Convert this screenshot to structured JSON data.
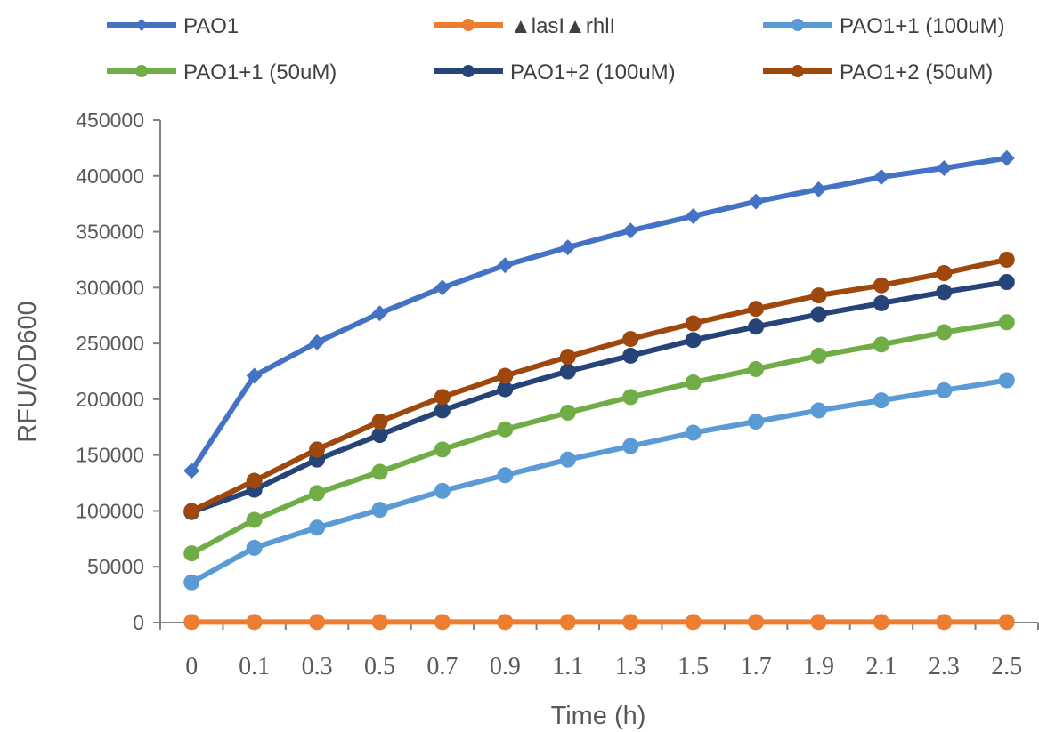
{
  "chart_data": {
    "type": "line",
    "title": "",
    "xlabel": "Time (h)",
    "ylabel": "RFU/OD600",
    "ylim": [
      0,
      450000
    ],
    "yticks": [
      "0",
      "50000",
      "100000",
      "150000",
      "200000",
      "250000",
      "300000",
      "350000",
      "400000",
      "450000"
    ],
    "categories": [
      "0",
      "0.1",
      "0.3",
      "0.5",
      "0.7",
      "0.9",
      "1.1",
      "1.3",
      "1.5",
      "1.7",
      "1.9",
      "2.1",
      "2.3",
      "2.5"
    ],
    "grid": false,
    "legend_position": "top",
    "series": [
      {
        "name": "PAO1",
        "color": "#4472C4",
        "marker": "diamond",
        "values": [
          136000,
          221000,
          251000,
          277000,
          300000,
          320000,
          336000,
          351000,
          364000,
          377000,
          388000,
          399000,
          407000,
          416000
        ]
      },
      {
        "name": "▲lasI▲rhlI",
        "color": "#ED7D31",
        "marker": "circle",
        "values": [
          500,
          500,
          500,
          500,
          500,
          500,
          500,
          500,
          500,
          500,
          500,
          500,
          500,
          500
        ]
      },
      {
        "name": "PAO1+1 (100uM)",
        "color": "#5B9BD5",
        "marker": "circle",
        "values": [
          36000,
          67000,
          85000,
          101000,
          118000,
          132000,
          146000,
          158000,
          170000,
          180000,
          190000,
          199000,
          208000,
          217000
        ]
      },
      {
        "name": "PAO1+1 (50uM)",
        "color": "#70AD47",
        "marker": "circle",
        "values": [
          62000,
          92000,
          116000,
          135000,
          155000,
          173000,
          188000,
          202000,
          215000,
          227000,
          239000,
          249000,
          260000,
          269000
        ]
      },
      {
        "name": "PAO1+2 (100uM)",
        "color": "#264478",
        "marker": "circle",
        "values": [
          99000,
          119000,
          146000,
          168000,
          190000,
          209000,
          225000,
          239000,
          253000,
          265000,
          276000,
          286000,
          296000,
          305000
        ]
      },
      {
        "name": "PAO1+2 (50uM)",
        "color": "#9E480E",
        "marker": "circle",
        "values": [
          100000,
          127000,
          155000,
          180000,
          202000,
          221000,
          238000,
          254000,
          268000,
          281000,
          293000,
          302000,
          313000,
          325000
        ]
      }
    ]
  }
}
